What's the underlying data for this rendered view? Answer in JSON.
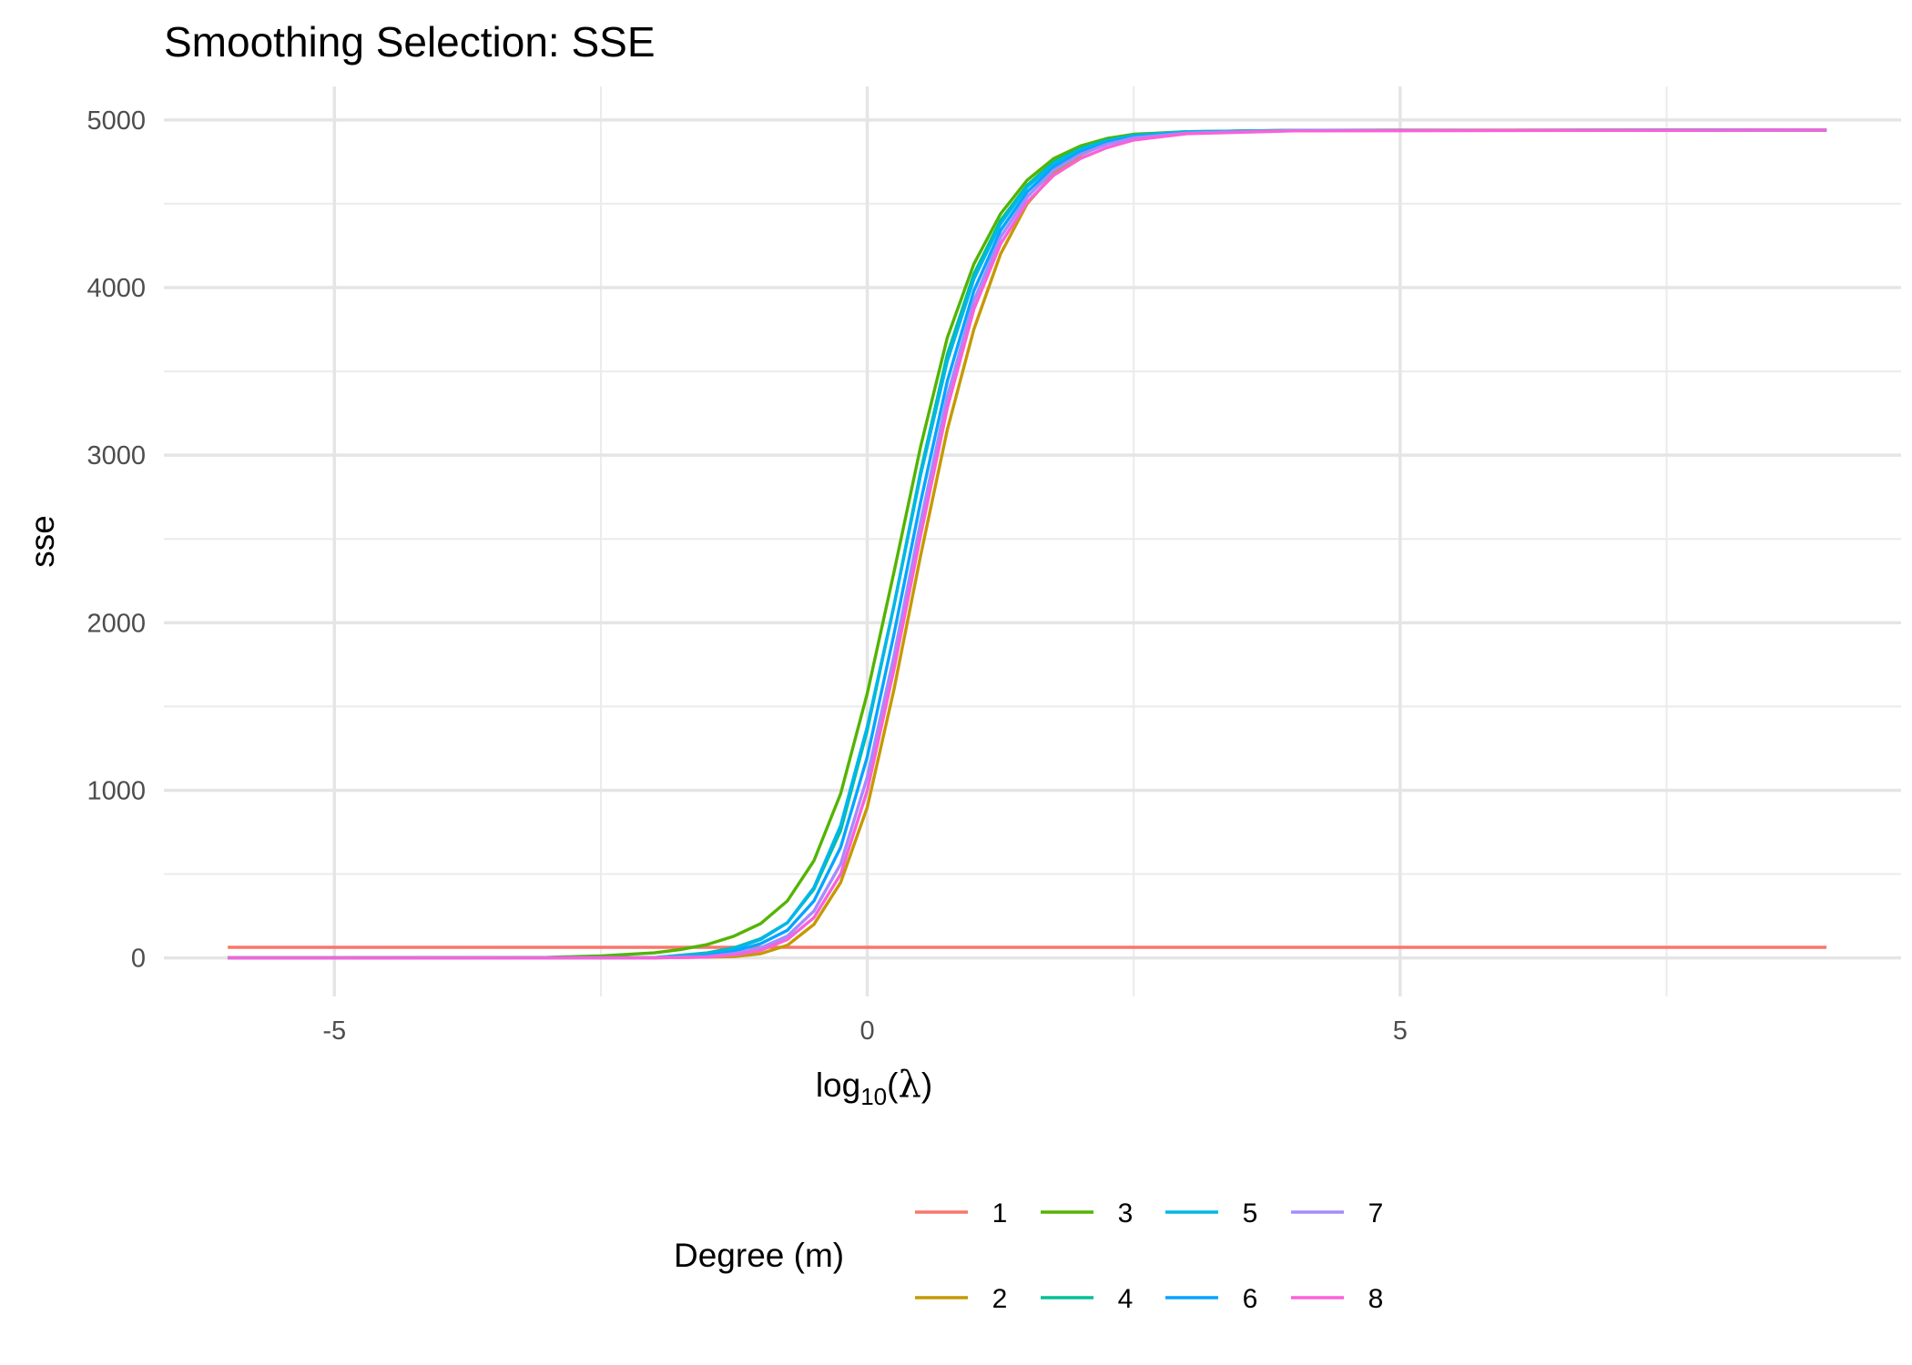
{
  "chart_data": {
    "type": "line",
    "title": "Smoothing Selection: SSE",
    "xlabel": {
      "prefix": "log",
      "subscript": "10",
      "open": "(",
      "symbol": "λ",
      "close": ")"
    },
    "ylabel": "sse",
    "xlim": [
      -6.6,
      9.7
    ],
    "ylim": [
      -230,
      5200
    ],
    "x_ticks": [
      -5,
      0,
      5
    ],
    "x_tick_labels": [
      "-5",
      "0",
      "5"
    ],
    "x_minor_ticks": [
      -2.5,
      2.5,
      7.5
    ],
    "y_ticks": [
      0,
      1000,
      2000,
      3000,
      4000,
      5000
    ],
    "y_tick_labels": [
      "0",
      "1000",
      "2000",
      "3000",
      "4000",
      "5000"
    ],
    "y_minor_ticks": [
      500,
      1500,
      2500,
      3500,
      4500
    ],
    "grid": true,
    "legend": {
      "title": "Degree (m)",
      "position": "bottom"
    },
    "series": [
      {
        "name": "1",
        "color": "#F8766D",
        "x": [
          -6,
          -2,
          0,
          1,
          2,
          9
        ],
        "y": [
          63,
          63,
          63,
          63,
          63,
          63
        ]
      },
      {
        "name": "2",
        "color": "#C49A00",
        "x": [
          -6,
          -2,
          -1.25,
          -1,
          -0.75,
          -0.5,
          -0.25,
          0,
          0.25,
          0.5,
          0.75,
          1,
          1.25,
          1.5,
          1.75,
          2,
          2.25,
          2.5,
          3,
          3.5,
          4,
          5,
          9
        ],
        "y": [
          0,
          0,
          8,
          25,
          75,
          200,
          450,
          900,
          1600,
          2400,
          3150,
          3750,
          4200,
          4500,
          4680,
          4790,
          4860,
          4900,
          4925,
          4935,
          4938,
          4940,
          4940
        ]
      },
      {
        "name": "3",
        "color": "#53B400",
        "x": [
          -6,
          -3,
          -2.5,
          -2,
          -1.75,
          -1.5,
          -1.25,
          -1,
          -0.75,
          -0.5,
          -0.25,
          0,
          0.25,
          0.5,
          0.75,
          1,
          1.25,
          1.5,
          1.75,
          2,
          2.25,
          2.5,
          3,
          4,
          9
        ],
        "y": [
          0,
          3,
          12,
          30,
          50,
          80,
          130,
          205,
          340,
          580,
          980,
          1580,
          2300,
          3050,
          3700,
          4140,
          4440,
          4640,
          4770,
          4845,
          4890,
          4915,
          4930,
          4938,
          4940
        ]
      },
      {
        "name": "4",
        "color": "#00C094",
        "x": [
          -6,
          -2,
          -1.5,
          -1.25,
          -1,
          -0.75,
          -0.5,
          -0.25,
          0,
          0.25,
          0.5,
          0.75,
          1,
          1.25,
          1.5,
          1.75,
          2,
          2.25,
          2.5,
          3,
          4,
          9
        ],
        "y": [
          0,
          2,
          30,
          60,
          115,
          210,
          410,
          760,
          1360,
          2100,
          2900,
          3600,
          4080,
          4400,
          4610,
          4750,
          4830,
          4880,
          4910,
          4930,
          4938,
          4940
        ]
      },
      {
        "name": "5",
        "color": "#00B6EB",
        "x": [
          -6,
          -2,
          -1.5,
          -1.25,
          -1,
          -0.75,
          -0.5,
          -0.25,
          0,
          0.25,
          0.5,
          0.75,
          1,
          1.25,
          1.5,
          1.75,
          2,
          2.25,
          2.5,
          3,
          4,
          9
        ],
        "y": [
          0,
          2,
          25,
          55,
          110,
          210,
          420,
          790,
          1380,
          2100,
          2880,
          3560,
          4050,
          4380,
          4600,
          4740,
          4825,
          4875,
          4905,
          4928,
          4938,
          4940
        ]
      },
      {
        "name": "6",
        "color": "#06A4FF",
        "x": [
          -6,
          -2,
          -1.5,
          -1.25,
          -1,
          -0.75,
          -0.5,
          -0.25,
          0,
          0.25,
          0.5,
          0.75,
          1,
          1.25,
          1.5,
          1.75,
          2,
          2.25,
          2.5,
          3,
          4,
          9
        ],
        "y": [
          0,
          1,
          15,
          40,
          85,
          165,
          340,
          660,
          1200,
          1930,
          2720,
          3440,
          3980,
          4340,
          4570,
          4720,
          4810,
          4865,
          4900,
          4925,
          4937,
          4940
        ]
      },
      {
        "name": "7",
        "color": "#A58AFF",
        "x": [
          -6,
          -2,
          -1.5,
          -1.25,
          -1,
          -0.75,
          -0.5,
          -0.25,
          0,
          0.25,
          0.5,
          0.75,
          1,
          1.25,
          1.5,
          1.75,
          2,
          2.25,
          2.5,
          3,
          4,
          9
        ],
        "y": [
          0,
          1,
          8,
          25,
          60,
          130,
          280,
          560,
          1080,
          1800,
          2600,
          3350,
          3920,
          4300,
          4540,
          4700,
          4795,
          4855,
          4893,
          4922,
          4936,
          4940
        ]
      },
      {
        "name": "8",
        "color": "#FB61D7",
        "x": [
          -6,
          -2,
          -1.5,
          -1.25,
          -1,
          -0.75,
          -0.5,
          -0.25,
          0,
          0.25,
          0.5,
          0.75,
          1,
          1.25,
          1.5,
          1.75,
          2,
          2.25,
          2.5,
          3,
          4,
          9
        ],
        "y": [
          0,
          0,
          5,
          18,
          45,
          110,
          240,
          500,
          1000,
          1720,
          2520,
          3280,
          3870,
          4260,
          4510,
          4670,
          4770,
          4835,
          4880,
          4918,
          4935,
          4940
        ]
      }
    ]
  }
}
